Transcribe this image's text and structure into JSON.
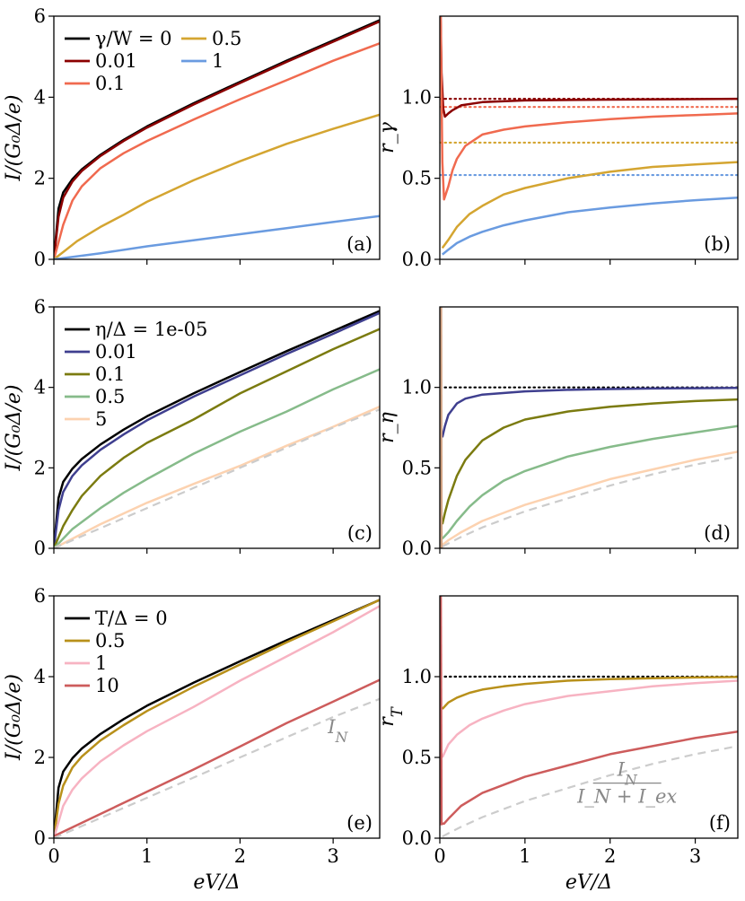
{
  "chart_data": [
    {
      "panel": "(a)",
      "type": "line",
      "ylabel": "I/(G₀Δ/e)",
      "xlabel": "",
      "xlim": [
        0,
        3.5
      ],
      "ylim": [
        0,
        6
      ],
      "yticks": [
        "0",
        "2",
        "4",
        "6"
      ],
      "xticks": [],
      "legend": {
        "placement": "top-left",
        "title": "γ/W = 0",
        "columns": 2
      },
      "series": [
        {
          "name": "γ/W = 0",
          "color": "#000000",
          "x": [
            0,
            0.05,
            0.1,
            0.2,
            0.3,
            0.5,
            0.75,
            1,
            1.5,
            2,
            2.5,
            3,
            3.5
          ],
          "y": [
            0,
            1.25,
            1.65,
            1.98,
            2.22,
            2.58,
            2.95,
            3.28,
            3.85,
            4.38,
            4.9,
            5.4,
            5.9
          ]
        },
        {
          "name": "0.01",
          "color": "#8b0000",
          "x": [
            0,
            0.05,
            0.1,
            0.2,
            0.3,
            0.5,
            0.75,
            1,
            1.5,
            2,
            2.5,
            3,
            3.5
          ],
          "y": [
            0,
            1.05,
            1.52,
            1.92,
            2.18,
            2.55,
            2.92,
            3.25,
            3.82,
            4.35,
            4.87,
            5.37,
            5.87
          ]
        },
        {
          "name": "0.1",
          "color": "#f06a4f",
          "x": [
            0,
            0.05,
            0.1,
            0.2,
            0.3,
            0.5,
            0.75,
            1,
            1.5,
            2,
            2.5,
            3,
            3.5
          ],
          "y": [
            0,
            0.42,
            0.85,
            1.45,
            1.8,
            2.25,
            2.62,
            2.92,
            3.45,
            3.95,
            4.42,
            4.9,
            5.33
          ]
        },
        {
          "name": "0.5",
          "color": "#d4a531",
          "x": [
            0,
            0.1,
            0.25,
            0.5,
            0.75,
            1,
            1.5,
            2,
            2.5,
            3,
            3.5
          ],
          "y": [
            0,
            0.18,
            0.45,
            0.8,
            1.1,
            1.42,
            1.95,
            2.42,
            2.85,
            3.22,
            3.57
          ]
        },
        {
          "name": "1",
          "color": "#6a9be0",
          "x": [
            0,
            0.5,
            1,
            1.5,
            2,
            2.5,
            3,
            3.5
          ],
          "y": [
            0,
            0.15,
            0.32,
            0.47,
            0.62,
            0.77,
            0.92,
            1.07
          ]
        }
      ]
    },
    {
      "panel": "(b)",
      "type": "line",
      "ylabel": "r_γ",
      "xlabel": "",
      "xlim": [
        0,
        3.5
      ],
      "ylim": [
        0,
        1.5
      ],
      "yticks": [
        "0.0",
        "0.5",
        "1.0"
      ],
      "xticks": [],
      "series": [
        {
          "color": "#8b0000",
          "x": [
            0.01,
            0.02,
            0.04,
            0.06,
            0.1,
            0.15,
            0.25,
            0.5,
            1,
            2,
            3.5
          ],
          "y": [
            1.5,
            1.15,
            0.93,
            0.88,
            0.9,
            0.92,
            0.95,
            0.97,
            0.98,
            0.985,
            0.99
          ]
        },
        {
          "color": "#f06a4f",
          "x": [
            0.01,
            0.03,
            0.05,
            0.1,
            0.15,
            0.2,
            0.3,
            0.5,
            0.75,
            1,
            1.5,
            2,
            2.5,
            3,
            3.5
          ],
          "y": [
            1.5,
            0.6,
            0.37,
            0.45,
            0.55,
            0.62,
            0.7,
            0.77,
            0.8,
            0.82,
            0.845,
            0.865,
            0.88,
            0.89,
            0.9
          ]
        },
        {
          "color": "#d4a531",
          "x": [
            0.03,
            0.1,
            0.2,
            0.35,
            0.5,
            0.75,
            1,
            1.5,
            2,
            2.5,
            3,
            3.5
          ],
          "y": [
            0.07,
            0.12,
            0.2,
            0.28,
            0.33,
            0.4,
            0.44,
            0.5,
            0.54,
            0.57,
            0.585,
            0.6
          ]
        },
        {
          "color": "#6a9be0",
          "x": [
            0.03,
            0.1,
            0.2,
            0.35,
            0.5,
            0.75,
            1,
            1.5,
            2,
            2.5,
            3,
            3.5
          ],
          "y": [
            0.03,
            0.06,
            0.1,
            0.14,
            0.17,
            0.21,
            0.24,
            0.29,
            0.32,
            0.345,
            0.365,
            0.38
          ]
        }
      ],
      "reference_lines": [
        {
          "color": "#8b0000",
          "y": 0.99,
          "style": "dotted"
        },
        {
          "color": "#f06a4f",
          "y": 0.94,
          "style": "dotted"
        },
        {
          "color": "#d4a531",
          "y": 0.72,
          "style": "dotted"
        },
        {
          "color": "#6a9be0",
          "y": 0.52,
          "style": "dotted"
        }
      ]
    },
    {
      "panel": "(c)",
      "type": "line",
      "ylabel": "I/(G₀Δ/e)",
      "xlabel": "",
      "xlim": [
        0,
        3.5
      ],
      "ylim": [
        0,
        6
      ],
      "yticks": [
        "0",
        "2",
        "4",
        "6"
      ],
      "xticks": [],
      "legend": {
        "placement": "top-left",
        "columns": 1
      },
      "series": [
        {
          "name": "η/Δ = 1e-05",
          "color": "#000000",
          "x": [
            0,
            0.05,
            0.1,
            0.2,
            0.3,
            0.5,
            0.75,
            1,
            1.5,
            2,
            2.5,
            3,
            3.5
          ],
          "y": [
            0,
            1.25,
            1.65,
            1.98,
            2.22,
            2.58,
            2.95,
            3.28,
            3.85,
            4.38,
            4.9,
            5.4,
            5.9
          ]
        },
        {
          "name": "0.01",
          "color": "#3f3f8f",
          "x": [
            0,
            0.05,
            0.1,
            0.2,
            0.3,
            0.5,
            0.75,
            1,
            1.5,
            2,
            2.5,
            3,
            3.5
          ],
          "y": [
            0,
            0.95,
            1.4,
            1.8,
            2.06,
            2.45,
            2.83,
            3.18,
            3.77,
            4.3,
            4.83,
            5.33,
            5.85
          ]
        },
        {
          "name": "0.1",
          "color": "#7b7b10",
          "x": [
            0,
            0.1,
            0.2,
            0.3,
            0.5,
            0.75,
            1,
            1.5,
            2,
            2.5,
            3,
            3.5
          ],
          "y": [
            0,
            0.55,
            0.95,
            1.3,
            1.8,
            2.25,
            2.62,
            3.2,
            3.85,
            4.4,
            4.95,
            5.45
          ]
        },
        {
          "name": "0.5",
          "color": "#86bb8a",
          "x": [
            0,
            0.2,
            0.5,
            0.75,
            1,
            1.5,
            2,
            2.5,
            3,
            3.5
          ],
          "y": [
            0,
            0.48,
            1.0,
            1.38,
            1.72,
            2.35,
            2.9,
            3.4,
            3.95,
            4.45
          ]
        },
        {
          "name": "5",
          "color": "#fcd2b0",
          "x": [
            0,
            0.5,
            1,
            1.5,
            2,
            2.5,
            3,
            3.5
          ],
          "y": [
            0,
            0.6,
            1.13,
            1.6,
            2.05,
            2.55,
            3.02,
            3.52
          ]
        },
        {
          "color": "#cccccc",
          "style": "dashed",
          "x": [
            0,
            0.5,
            1,
            1.5,
            2,
            2.5,
            3,
            3.5
          ],
          "y": [
            0,
            0.5,
            1.0,
            1.5,
            2.0,
            2.5,
            3.0,
            3.45
          ]
        }
      ]
    },
    {
      "panel": "(d)",
      "type": "line",
      "ylabel": "r_η",
      "xlabel": "",
      "xlim": [
        0,
        3.5
      ],
      "ylim": [
        0,
        1.5
      ],
      "yticks": [
        "0.0",
        "0.5",
        "1.0"
      ],
      "xticks": [],
      "series": [
        {
          "color": "#3f3f8f",
          "x": [
            0.03,
            0.06,
            0.1,
            0.2,
            0.3,
            0.5,
            1,
            1.5,
            2,
            2.5,
            3,
            3.5
          ],
          "y": [
            0.69,
            0.76,
            0.83,
            0.9,
            0.93,
            0.955,
            0.975,
            0.985,
            0.99,
            0.993,
            0.995,
            0.997
          ]
        },
        {
          "color": "#7b7b10",
          "x": [
            0.03,
            0.06,
            0.1,
            0.2,
            0.3,
            0.5,
            0.75,
            1,
            1.5,
            2,
            2.5,
            3,
            3.5
          ],
          "y": [
            0.15,
            0.22,
            0.3,
            0.45,
            0.55,
            0.67,
            0.75,
            0.8,
            0.85,
            0.88,
            0.9,
            0.915,
            0.925
          ]
        },
        {
          "color": "#86bb8a",
          "x": [
            0.03,
            0.1,
            0.2,
            0.35,
            0.5,
            0.75,
            1,
            1.5,
            2,
            2.5,
            3,
            3.5
          ],
          "y": [
            0.06,
            0.1,
            0.17,
            0.26,
            0.33,
            0.42,
            0.48,
            0.57,
            0.63,
            0.68,
            0.72,
            0.76
          ]
        },
        {
          "color": "#fcd2b0",
          "x": [
            0.03,
            0.1,
            0.25,
            0.5,
            0.75,
            1,
            1.5,
            2,
            2.5,
            3,
            3.5
          ],
          "y": [
            0.02,
            0.05,
            0.1,
            0.17,
            0.22,
            0.27,
            0.35,
            0.43,
            0.49,
            0.55,
            0.6
          ]
        },
        {
          "color": "#cccccc",
          "style": "dashed",
          "x": [
            0.03,
            0.1,
            0.25,
            0.5,
            0.75,
            1,
            1.5,
            2,
            2.5,
            3,
            3.5
          ],
          "y": [
            0.01,
            0.03,
            0.07,
            0.13,
            0.18,
            0.23,
            0.31,
            0.39,
            0.46,
            0.52,
            0.57
          ]
        },
        {
          "color": "#cfa080",
          "x": [
            0.015,
            0.02
          ],
          "y": [
            1.5,
            0.0
          ]
        }
      ],
      "reference_lines": [
        {
          "color": "#000000",
          "y": 1.0,
          "style": "dotted"
        }
      ]
    },
    {
      "panel": "(e)",
      "type": "line",
      "ylabel": "I/(G₀Δ/e)",
      "xlabel": "eV/Δ",
      "xlim": [
        0,
        3.5
      ],
      "ylim": [
        0,
        6
      ],
      "yticks": [
        "0",
        "2",
        "4",
        "6"
      ],
      "xticks": [
        "0",
        "1",
        "2",
        "3"
      ],
      "legend": {
        "placement": "top-left",
        "columns": 1
      },
      "annotation": "I_N",
      "series": [
        {
          "name": "T/Δ = 0",
          "color": "#000000",
          "x": [
            0,
            0.05,
            0.1,
            0.2,
            0.3,
            0.5,
            0.75,
            1,
            1.5,
            2,
            2.5,
            3,
            3.5
          ],
          "y": [
            0,
            1.25,
            1.65,
            1.98,
            2.22,
            2.58,
            2.95,
            3.28,
            3.85,
            4.38,
            4.9,
            5.4,
            5.9
          ]
        },
        {
          "name": "0.5",
          "color": "#b8901a",
          "x": [
            0,
            0.05,
            0.1,
            0.2,
            0.3,
            0.5,
            0.75,
            1,
            1.5,
            2,
            2.5,
            3,
            3.5
          ],
          "y": [
            0,
            0.85,
            1.3,
            1.75,
            2.02,
            2.42,
            2.8,
            3.15,
            3.75,
            4.3,
            4.85,
            5.37,
            5.9
          ]
        },
        {
          "name": "1",
          "color": "#f7b3c2",
          "x": [
            0,
            0.1,
            0.2,
            0.3,
            0.5,
            0.75,
            1,
            1.5,
            2,
            2.5,
            3,
            3.5
          ],
          "y": [
            0,
            0.8,
            1.2,
            1.48,
            1.9,
            2.3,
            2.65,
            3.25,
            3.9,
            4.5,
            5.1,
            5.75
          ]
        },
        {
          "name": "10",
          "color": "#cd5c5c",
          "x": [
            0,
            0.5,
            1,
            1.5,
            2,
            2.5,
            3,
            3.5
          ],
          "y": [
            0.05,
            0.6,
            1.15,
            1.7,
            2.27,
            2.85,
            3.38,
            3.92
          ]
        },
        {
          "color": "#cccccc",
          "style": "dashed",
          "x": [
            0,
            0.5,
            1,
            1.5,
            2,
            2.5,
            3,
            3.5
          ],
          "y": [
            0,
            0.5,
            1.0,
            1.5,
            2.0,
            2.5,
            3.0,
            3.45
          ]
        }
      ]
    },
    {
      "panel": "(f)",
      "type": "line",
      "ylabel": "r_T",
      "xlabel": "eV/Δ",
      "xlim": [
        0,
        3.5
      ],
      "ylim": [
        0,
        1.5
      ],
      "yticks": [
        "0.0",
        "0.5",
        "1.0"
      ],
      "xticks": [
        "0",
        "1",
        "2",
        "3"
      ],
      "annotation": {
        "numerator": "I_N",
        "denominator": "I_N + I_ex"
      },
      "series": [
        {
          "color": "#b8901a",
          "x": [
            0.03,
            0.1,
            0.2,
            0.35,
            0.5,
            0.75,
            1,
            1.5,
            2,
            2.5,
            3,
            3.5
          ],
          "y": [
            0.8,
            0.84,
            0.87,
            0.9,
            0.92,
            0.94,
            0.955,
            0.975,
            0.985,
            0.99,
            0.995,
            0.998
          ]
        },
        {
          "color": "#f7b3c2",
          "x": [
            0.03,
            0.1,
            0.2,
            0.35,
            0.5,
            0.75,
            1,
            1.5,
            2,
            2.5,
            3,
            3.5
          ],
          "y": [
            0.5,
            0.58,
            0.64,
            0.7,
            0.74,
            0.79,
            0.83,
            0.88,
            0.91,
            0.94,
            0.96,
            0.975
          ]
        },
        {
          "color": "#cd5c5c",
          "x": [
            0.03,
            0.05,
            0.1,
            0.25,
            0.5,
            0.75,
            1,
            1.5,
            2,
            2.5,
            3,
            3.5
          ],
          "y": [
            0.09,
            0.09,
            0.12,
            0.2,
            0.28,
            0.33,
            0.38,
            0.45,
            0.52,
            0.57,
            0.62,
            0.66
          ]
        },
        {
          "color": "#cccccc",
          "style": "dashed",
          "x": [
            0.03,
            0.1,
            0.25,
            0.5,
            0.75,
            1,
            1.5,
            2,
            2.5,
            3,
            3.5
          ],
          "y": [
            0.01,
            0.03,
            0.07,
            0.13,
            0.18,
            0.23,
            0.31,
            0.39,
            0.46,
            0.52,
            0.57
          ]
        },
        {
          "color": "#cd5c5c",
          "x": [
            0.012,
            0.02
          ],
          "y": [
            1.5,
            0.08
          ]
        }
      ],
      "reference_lines": [
        {
          "color": "#000000",
          "y": 1.0,
          "style": "dotted"
        }
      ]
    }
  ]
}
